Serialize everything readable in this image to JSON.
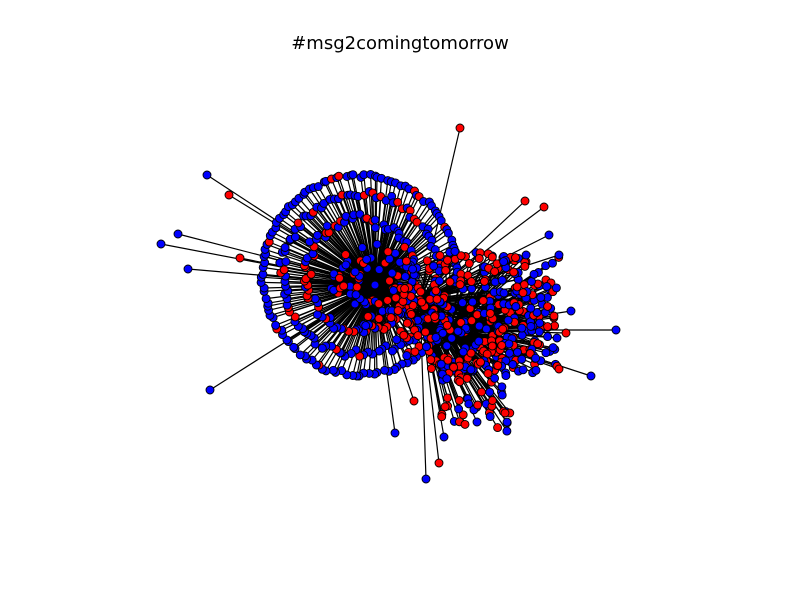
{
  "figure": {
    "title": "#msg2comingtomorrow"
  },
  "colors": {
    "node_blue": "#0000ff",
    "node_red": "#ff0000",
    "edge": "#000000",
    "node_outline": "#000000",
    "background": "#ffffff"
  },
  "network": {
    "type": "force-directed node-link graph",
    "node_color_groups": [
      "blue",
      "red"
    ]
  }
}
